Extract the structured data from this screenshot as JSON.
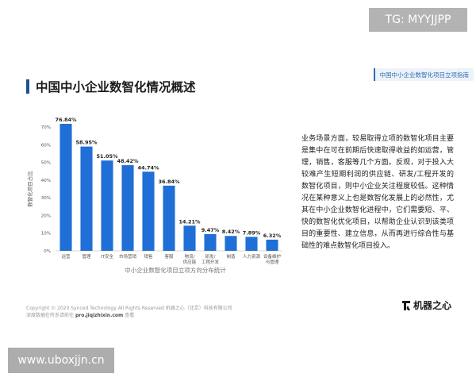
{
  "watermark_top": "TG: MYYJJPP",
  "report_tag": "中国中小企业数智化项目立项指南",
  "page_title": "中国中小企业数智化情况概述",
  "side_text": "业务场景方面，较易取得立项的数智化项目主要是集中在可在前期后快速取得收益的如运营，管理，销售，客服等几个方面。反观，对于投入大较难产生短期利润的供应链、研发/工程开发的数智化项目，则中小企业关注程度较低。这种情况在某种意义上也是数智化发展上的必然性，尤其在中小企业数智化进程中，它们需要短、平、快的数智化优化项目，以帮助企业认识到该类项目的重要性、建立信息，从而再进行综合性与基础性的难点数智化项目投入。",
  "copyright": {
    "line1": "Copyright © 2020 Synced Technology All Rights Reserved 机器之心（北京）科技有限公司",
    "line2_prefix": "深度数据在所系请前往",
    "line2_url": "pro.jiqizhixin.com",
    "line2_suffix": "查看"
  },
  "logo_text": "机器之心",
  "watermark_bottom": "www.uboxjjn.cn",
  "colors": {
    "bar": "#1f6fd6",
    "title_accent": "#1f4f99",
    "axis_text": "#555555",
    "grid": "#e6e6e6"
  },
  "chart_data": {
    "type": "bar",
    "title": "",
    "caption": "中小企业数智化项目立项方向分布统计",
    "xlabel": "",
    "ylabel": "数智化项目占比",
    "ylim": [
      0,
      70
    ],
    "yticks": [
      "0%",
      "10%",
      "20%",
      "30%",
      "40%",
      "50%",
      "60%",
      "70%"
    ],
    "categories": [
      "运营",
      "管理",
      "IT安全",
      "市场营销",
      "销售",
      "客服",
      "物流/供应链",
      "研发/工程开发",
      "制造",
      "人力资源",
      "设备维护与管理"
    ],
    "category_lines": [
      [
        "运营"
      ],
      [
        "管理"
      ],
      [
        "IT安全"
      ],
      [
        "市场营销"
      ],
      [
        "销售"
      ],
      [
        "客服"
      ],
      [
        "物流/",
        "供应链"
      ],
      [
        "研发/",
        "工程开发"
      ],
      [
        "制造"
      ],
      [
        "人力资源"
      ],
      [
        "设备维护",
        "与管理"
      ]
    ],
    "values": [
      76.84,
      58.95,
      51.05,
      48.42,
      44.74,
      36.84,
      14.21,
      9.47,
      8.42,
      7.89,
      6.32
    ],
    "value_labels": [
      "76.84%",
      "58.95%",
      "51.05%",
      "48.42%",
      "44.74%",
      "36.84%",
      "14.21%",
      "9.47%",
      "8.42%",
      "7.89%",
      "6.32%"
    ],
    "grid": false,
    "legend": "none"
  }
}
